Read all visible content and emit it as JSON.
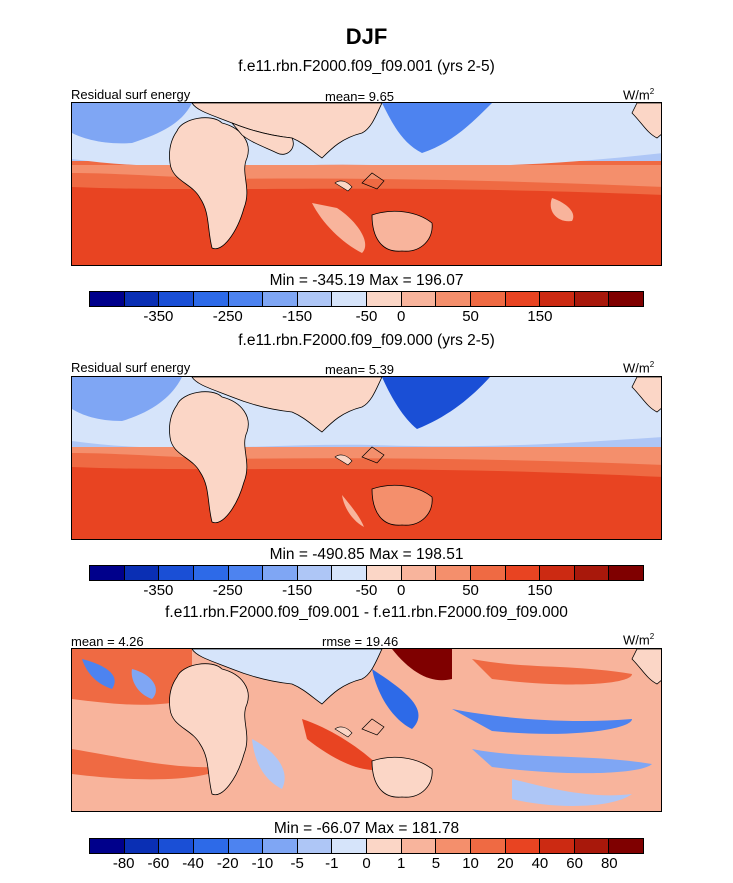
{
  "title": "DJF",
  "units_main": "W/m",
  "units_sup": "2",
  "panels": [
    {
      "subtitle": "f.e11.rbn.F2000.f09_f09.001 (yrs 2-5)",
      "left_label": "Residual surf energy",
      "center_label": "mean=   9.65",
      "minmax": "Min = -345.19 Max = 196.07"
    },
    {
      "subtitle": "f.e11.rbn.F2000.f09_f09.000 (yrs 2-5)",
      "left_label": "Residual surf energy",
      "center_label": "mean=   5.39",
      "minmax": "Min = -490.85 Max = 198.51"
    },
    {
      "subtitle": "f.e11.rbn.F2000.f09_f09.001 - f.e11.rbn.F2000.f09_f09.000",
      "left_label": "mean =   4.26",
      "center_label": "rmse =  19.46",
      "minmax": "Min = -66.07 Max = 181.78"
    }
  ],
  "colorbar_main": {
    "colors": [
      "#00008b",
      "#0a2fb4",
      "#1a4fd6",
      "#2d6ae8",
      "#4d83f0",
      "#7fa6f4",
      "#aec6f6",
      "#d6e4fa",
      "#fbd6c6",
      "#f8b49c",
      "#f48f6c",
      "#ef6a43",
      "#e84422",
      "#cc2a12",
      "#a8180b",
      "#7f0000"
    ],
    "ticks": [
      "-350",
      "-250",
      "-150",
      "-50",
      "0",
      "50",
      "150"
    ]
  },
  "colorbar_diff": {
    "colors": [
      "#00008b",
      "#0a2fb4",
      "#1a4fd6",
      "#2d6ae8",
      "#4d83f0",
      "#7fa6f4",
      "#aec6f6",
      "#d6e4fa",
      "#fbd6c6",
      "#f8b49c",
      "#f48f6c",
      "#ef6a43",
      "#e84422",
      "#cc2a12",
      "#a8180b",
      "#7f0000"
    ],
    "ticks": [
      "-80",
      "-60",
      "-40",
      "-20",
      "-10",
      "-5",
      "-1",
      "0",
      "1",
      "5",
      "10",
      "20",
      "40",
      "60",
      "80"
    ]
  },
  "chart_data": [
    {
      "type": "heatmap",
      "title": "f.e11.rbn.F2000.f09_f09.001 (yrs 2-5)",
      "variable": "Residual surf energy",
      "units": "W/m2",
      "mean": 9.65,
      "min": -345.19,
      "max": 196.07,
      "colorbar_ticks": [
        -350,
        -250,
        -150,
        -50,
        0,
        50,
        150
      ]
    },
    {
      "type": "heatmap",
      "title": "f.e11.rbn.F2000.f09_f09.000 (yrs 2-5)",
      "variable": "Residual surf energy",
      "units": "W/m2",
      "mean": 5.39,
      "min": -490.85,
      "max": 198.51,
      "colorbar_ticks": [
        -350,
        -250,
        -150,
        -50,
        0,
        50,
        150
      ]
    },
    {
      "type": "heatmap",
      "title": "f.e11.rbn.F2000.f09_f09.001 - f.e11.rbn.F2000.f09_f09.000",
      "units": "W/m2",
      "mean": 4.26,
      "rmse": 19.46,
      "min": -66.07,
      "max": 181.78,
      "colorbar_ticks": [
        -80,
        -60,
        -40,
        -20,
        -10,
        -5,
        -1,
        0,
        1,
        5,
        10,
        20,
        40,
        60,
        80
      ]
    }
  ]
}
